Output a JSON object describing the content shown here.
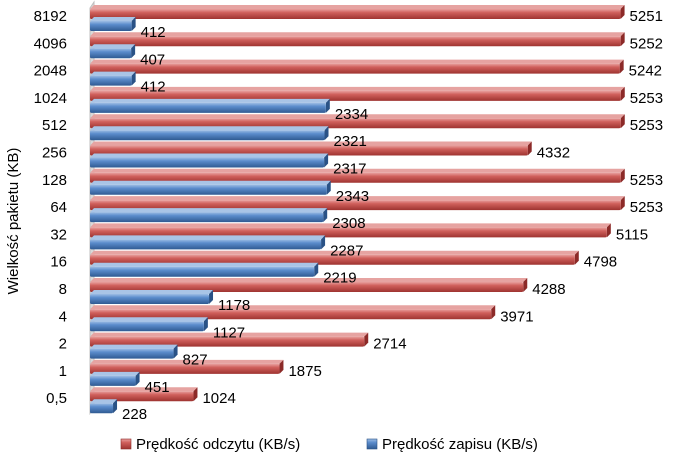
{
  "chart_data": {
    "type": "bar",
    "orientation": "horizontal",
    "style": "3d",
    "ylabel": "Wielkość pakietu (KB)",
    "xlabel": "",
    "categories": [
      "0,5",
      "1",
      "2",
      "4",
      "8",
      "16",
      "32",
      "64",
      "128",
      "256",
      "512",
      "1024",
      "2048",
      "4096",
      "8192"
    ],
    "series": [
      {
        "name": "Prędkość odczytu (KB/s)",
        "color": "#c0504d",
        "values": [
          1024,
          1875,
          2714,
          3971,
          4288,
          4798,
          5115,
          5253,
          5253,
          4332,
          5253,
          5253,
          5242,
          5252,
          5251
        ]
      },
      {
        "name": "Prędkość zapisu (KB/s)",
        "color": "#4f81bd",
        "values": [
          228,
          451,
          827,
          1127,
          1178,
          2219,
          2287,
          2308,
          2343,
          2317,
          2321,
          2334,
          412,
          407,
          412
        ]
      }
    ],
    "xlim": [
      0,
      5500
    ],
    "grid": false,
    "legend": "bottom"
  }
}
